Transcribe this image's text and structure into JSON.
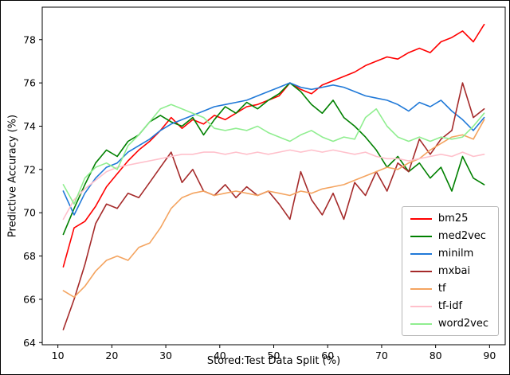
{
  "figure": {
    "background": "#ffffff",
    "frame_color": "#000000"
  },
  "chart_data": {
    "type": "line",
    "title": "",
    "xlabel": "Stored:Test Data Split (%)",
    "ylabel": "Predictive Accuracy (%)",
    "xlim": [
      7.1,
      92.9
    ],
    "ylim": [
      63.9,
      79.5
    ],
    "x_ticks": [
      10,
      20,
      30,
      40,
      50,
      60,
      70,
      80,
      90
    ],
    "y_ticks": [
      64,
      66,
      68,
      70,
      72,
      74,
      76,
      78
    ],
    "grid": false,
    "legend_position": "lower right",
    "x": [
      11,
      13,
      15,
      17,
      19,
      21,
      23,
      25,
      27,
      29,
      31,
      33,
      35,
      37,
      39,
      41,
      43,
      45,
      47,
      49,
      51,
      53,
      55,
      57,
      59,
      61,
      63,
      65,
      67,
      69,
      71,
      73,
      75,
      77,
      79,
      81,
      83,
      85,
      87,
      89
    ],
    "series": [
      {
        "name": "bm25",
        "color": "#ff0000",
        "values": [
          67.5,
          69.3,
          69.6,
          70.3,
          71.2,
          71.8,
          72.4,
          72.9,
          73.3,
          73.8,
          74.4,
          73.9,
          74.3,
          74.1,
          74.5,
          74.3,
          74.6,
          74.9,
          75.0,
          75.2,
          75.4,
          76.0,
          75.7,
          75.5,
          75.9,
          76.1,
          76.3,
          76.5,
          76.8,
          77.0,
          77.2,
          77.1,
          77.4,
          77.6,
          77.4,
          77.9,
          78.1,
          78.4,
          77.9,
          78.7
        ]
      },
      {
        "name": "med2vec",
        "color": "#008000",
        "values": [
          69.0,
          70.2,
          71.3,
          72.3,
          72.9,
          72.6,
          73.3,
          73.6,
          74.2,
          74.5,
          74.2,
          74.0,
          74.4,
          73.6,
          74.3,
          74.9,
          74.6,
          75.1,
          74.8,
          75.2,
          75.5,
          76.0,
          75.6,
          75.0,
          74.6,
          75.2,
          74.4,
          74.0,
          73.5,
          72.9,
          72.1,
          72.6,
          71.9,
          72.3,
          71.6,
          72.1,
          71.0,
          72.6,
          71.6,
          71.3
        ]
      },
      {
        "name": "minilm",
        "color": "#2079d8",
        "values": [
          71.0,
          69.9,
          70.9,
          71.6,
          72.1,
          72.3,
          72.8,
          73.1,
          73.4,
          73.8,
          74.1,
          74.3,
          74.5,
          74.7,
          74.9,
          75.0,
          75.1,
          75.2,
          75.4,
          75.6,
          75.8,
          76.0,
          75.8,
          75.7,
          75.8,
          75.9,
          75.8,
          75.6,
          75.4,
          75.3,
          75.2,
          75.0,
          74.7,
          75.1,
          74.9,
          75.2,
          74.7,
          74.3,
          73.8,
          74.4
        ]
      },
      {
        "name": "mxbai",
        "color": "#a52a2a",
        "values": [
          64.6,
          66.0,
          67.6,
          69.5,
          70.4,
          70.2,
          70.9,
          70.7,
          71.4,
          72.1,
          72.8,
          71.4,
          72.0,
          71.0,
          70.8,
          71.3,
          70.7,
          71.2,
          70.8,
          71.0,
          70.4,
          69.7,
          71.9,
          70.6,
          69.9,
          70.9,
          69.7,
          71.4,
          70.8,
          71.9,
          71.0,
          72.3,
          71.9,
          73.4,
          72.7,
          73.4,
          73.8,
          76.0,
          74.4,
          74.8
        ]
      },
      {
        "name": "tf",
        "color": "#f4a460",
        "values": [
          66.4,
          66.1,
          66.6,
          67.3,
          67.8,
          68.0,
          67.8,
          68.4,
          68.6,
          69.3,
          70.2,
          70.7,
          70.9,
          71.0,
          70.8,
          70.9,
          71.0,
          70.9,
          70.8,
          71.0,
          70.9,
          70.8,
          71.0,
          70.9,
          71.1,
          71.2,
          71.3,
          71.5,
          71.7,
          71.9,
          72.1,
          72.0,
          72.3,
          72.5,
          72.9,
          73.2,
          73.5,
          73.6,
          73.4,
          74.3
        ]
      },
      {
        "name": "tf-idf",
        "color": "#ffc0cb",
        "values": [
          69.7,
          70.6,
          71.1,
          71.5,
          71.9,
          72.1,
          72.2,
          72.3,
          72.4,
          72.5,
          72.6,
          72.7,
          72.7,
          72.8,
          72.8,
          72.7,
          72.8,
          72.7,
          72.8,
          72.7,
          72.8,
          72.9,
          72.8,
          72.9,
          72.8,
          72.9,
          72.8,
          72.7,
          72.8,
          72.6,
          72.5,
          72.5,
          72.4,
          72.5,
          72.6,
          72.7,
          72.6,
          72.8,
          72.6,
          72.7
        ]
      },
      {
        "name": "word2vec",
        "color": "#90ee90",
        "values": [
          71.3,
          70.4,
          71.6,
          72.1,
          72.3,
          72.0,
          73.1,
          73.6,
          74.2,
          74.8,
          75.0,
          74.8,
          74.6,
          74.4,
          73.9,
          73.8,
          73.9,
          73.8,
          74.0,
          73.7,
          73.5,
          73.3,
          73.6,
          73.8,
          73.5,
          73.3,
          73.5,
          73.4,
          74.4,
          74.8,
          74.0,
          73.5,
          73.3,
          73.5,
          73.3,
          73.5,
          73.4,
          73.5,
          74.0,
          74.6
        ]
      }
    ]
  }
}
